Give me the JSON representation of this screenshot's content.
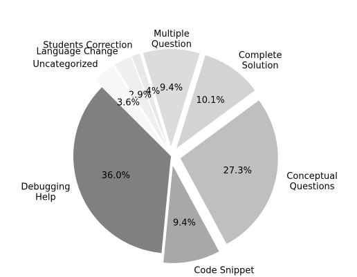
{
  "chart_data": {
    "type": "pie",
    "categories": [
      "Debugging\nHelp",
      "Code Snippet",
      "Conceptual\nQuestions",
      "Complete\nSolution",
      "Multiple\nQuestion",
      "Students Correction",
      "Language Change",
      "Uncategorized"
    ],
    "values": [
      36.0,
      9.4,
      27.3,
      10.1,
      9.4,
      1.4,
      2.9,
      3.6
    ],
    "value_labels": [
      "36.0%",
      "9.4%",
      "27.3%",
      "10.1%",
      "9.4%",
      "1.4%",
      "2.9%",
      "3.6%"
    ],
    "colors": [
      "#808080",
      "#a8a8a8",
      "#bfbfbf",
      "#d3d3d3",
      "#dcdcdc",
      "#e8e8e8",
      "#efefef",
      "#f7f7f7"
    ],
    "explode": [
      0,
      0.1,
      0.1,
      0.1,
      0.1,
      0.1,
      0.1,
      0.1
    ],
    "start_angle_deg": 135,
    "direction": "counterclockwise",
    "legend": "none"
  }
}
